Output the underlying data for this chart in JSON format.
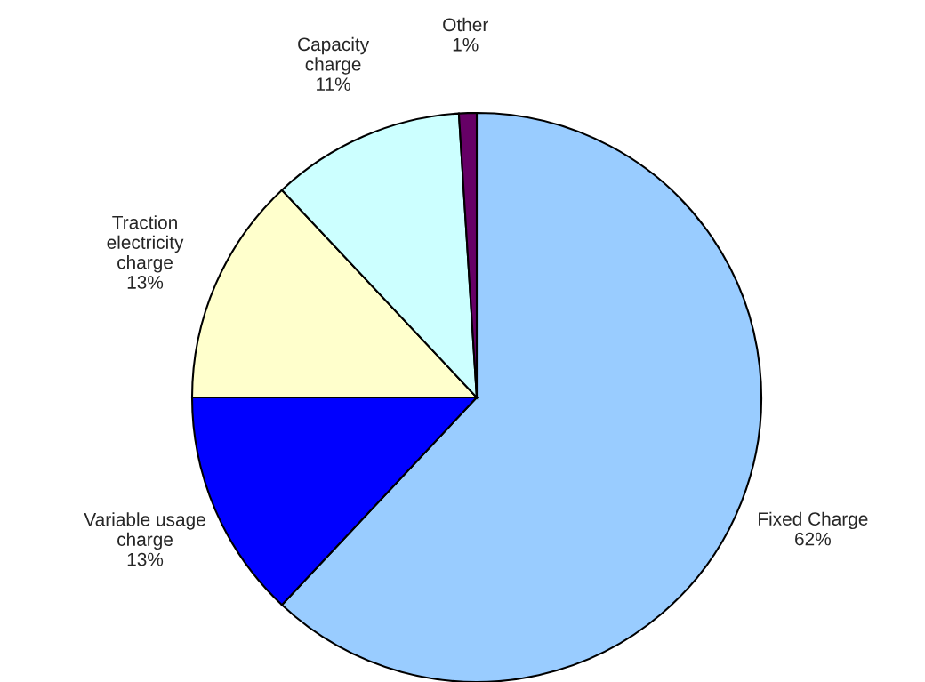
{
  "chart_data": {
    "type": "pie",
    "categories": [
      "Fixed Charge",
      "Variable usage\ncharge",
      "Traction\nelectricity\ncharge",
      "Capacity\ncharge",
      "Other"
    ],
    "values": [
      62,
      13,
      13,
      11,
      1
    ],
    "value_labels": [
      "62%",
      "13%",
      "13%",
      "11%",
      "1%"
    ],
    "colors": [
      "#99ccff",
      "#0000ff",
      "#ffffcc",
      "#ccffff",
      "#660066"
    ],
    "legend": false
  }
}
